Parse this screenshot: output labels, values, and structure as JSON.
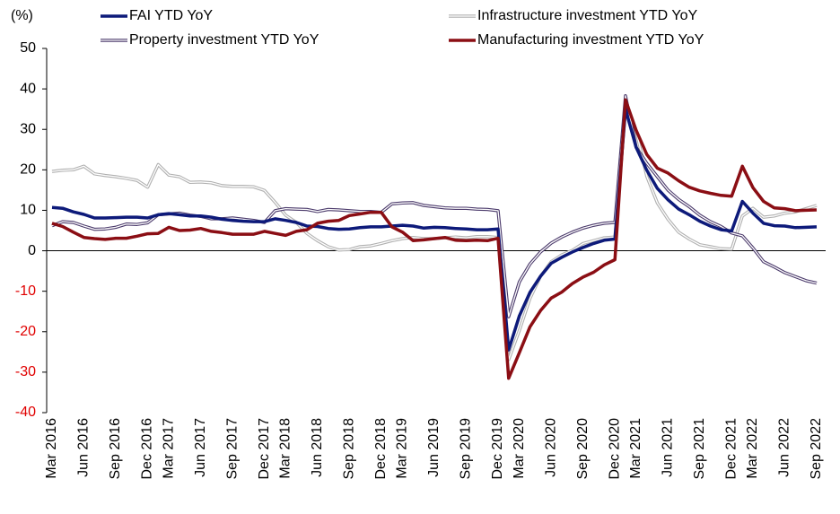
{
  "chart_data": {
    "type": "line",
    "y_label": "(%)",
    "categories": [
      "Mar 2016",
      null,
      null,
      "Jun 2016",
      null,
      null,
      "Sep 2016",
      null,
      null,
      "Dec 2016",
      null,
      "Mar 2017",
      null,
      null,
      "Jun 2017",
      null,
      null,
      "Sep 2017",
      null,
      null,
      "Dec 2017",
      null,
      "Mar 2018",
      null,
      null,
      "Jun 2018",
      null,
      null,
      "Sep 2018",
      null,
      null,
      "Dec 2018",
      null,
      "Mar 2019",
      null,
      null,
      "Jun 2019",
      null,
      null,
      "Sep 2019",
      null,
      null,
      "Dec 2019",
      null,
      "Mar 2020",
      null,
      null,
      "Jun 2020",
      null,
      null,
      "Sep 2020",
      null,
      null,
      "Dec 2020",
      null,
      "Mar 2021",
      null,
      null,
      "Jun 2021",
      null,
      null,
      "Sep 2021",
      null,
      null,
      "Dec 2021",
      null,
      "Mar 2022",
      null,
      null,
      "Jun 2022",
      null,
      null,
      "Sep 2022"
    ],
    "series": [
      {
        "name": "FAI YTD YoY",
        "color": "#0d1a7a",
        "outline": false,
        "values": [
          10.7,
          10.5,
          9.6,
          9.0,
          8.1,
          8.1,
          8.2,
          8.3,
          8.3,
          8.1,
          8.9,
          9.2,
          8.9,
          8.6,
          8.6,
          8.3,
          7.8,
          7.5,
          7.3,
          7.2,
          7.2,
          7.9,
          7.5,
          7.0,
          6.1,
          6.0,
          5.5,
          5.3,
          5.4,
          5.7,
          5.9,
          5.9,
          6.1,
          6.3,
          6.1,
          5.6,
          5.8,
          5.7,
          5.5,
          5.4,
          5.2,
          5.2,
          5.4,
          -24.5,
          -16.1,
          -10.3,
          -6.3,
          -3.1,
          -1.6,
          -0.3,
          0.8,
          1.8,
          2.6,
          2.9,
          35.0,
          25.6,
          19.9,
          15.4,
          12.6,
          10.3,
          8.9,
          7.3,
          6.1,
          5.2,
          4.9,
          12.2,
          9.3,
          6.8,
          6.2,
          6.1,
          5.7,
          5.8,
          5.9
        ]
      },
      {
        "name": "Infrastructure investment YTD YoY",
        "color": "#b0b0b0",
        "outline": true,
        "values": [
          19.6,
          19.9,
          20.0,
          20.9,
          19.0,
          18.6,
          18.3,
          17.9,
          17.4,
          15.7,
          21.3,
          18.7,
          18.3,
          16.9,
          17.0,
          16.8,
          16.1,
          15.9,
          15.9,
          15.8,
          14.9,
          12.0,
          8.8,
          7.0,
          4.3,
          2.5,
          1.0,
          0.2,
          0.3,
          1.0,
          1.2,
          1.8,
          2.5,
          3.0,
          3.3,
          3.0,
          3.0,
          3.2,
          3.4,
          3.2,
          3.5,
          3.5,
          3.3,
          -26.9,
          -19.7,
          -11.8,
          -6.3,
          -2.7,
          -1.0,
          0.1,
          1.8,
          2.5,
          3.2,
          3.4,
          35.0,
          29.7,
          18.4,
          11.8,
          7.8,
          4.6,
          2.9,
          1.5,
          1.0,
          0.5,
          0.4,
          8.6,
          10.5,
          8.3,
          8.6,
          9.3,
          9.6,
          10.4,
          11.2
        ]
      },
      {
        "name": "Property investment YTD YoY",
        "color": "#4b3a6b",
        "outline": true,
        "values": [
          6.2,
          7.2,
          7.0,
          6.1,
          5.3,
          5.4,
          5.8,
          6.6,
          6.5,
          6.9,
          8.9,
          9.1,
          9.3,
          8.8,
          8.5,
          7.9,
          7.9,
          8.1,
          7.8,
          7.5,
          7.0,
          9.9,
          10.4,
          10.3,
          10.2,
          9.7,
          10.2,
          10.1,
          9.9,
          9.7,
          9.7,
          9.5,
          11.6,
          11.8,
          11.9,
          11.2,
          10.9,
          10.6,
          10.5,
          10.5,
          10.3,
          10.2,
          9.9,
          -16.3,
          -7.7,
          -3.3,
          -0.3,
          1.9,
          3.4,
          4.6,
          5.6,
          6.3,
          6.8,
          7.0,
          38.3,
          25.6,
          21.6,
          18.3,
          15.0,
          12.7,
          10.9,
          8.8,
          7.2,
          6.0,
          4.4,
          3.7,
          0.7,
          -2.7,
          -4.0,
          -5.4,
          -6.4,
          -7.4,
          -8.0
        ]
      },
      {
        "name": "Manufacturing investment YTD YoY",
        "color": "#8b0e14",
        "outline": false,
        "values": [
          6.8,
          6.0,
          4.6,
          3.3,
          3.0,
          2.8,
          3.1,
          3.1,
          3.6,
          4.2,
          4.3,
          5.8,
          5.0,
          5.1,
          5.5,
          4.8,
          4.5,
          4.1,
          4.1,
          4.1,
          4.8,
          4.3,
          3.8,
          4.8,
          5.2,
          6.8,
          7.3,
          7.5,
          8.7,
          9.1,
          9.5,
          9.5,
          5.9,
          4.6,
          2.5,
          2.7,
          3.0,
          3.3,
          2.6,
          2.5,
          2.6,
          2.5,
          3.1,
          -31.5,
          -25.2,
          -18.8,
          -14.8,
          -11.7,
          -10.2,
          -8.1,
          -6.5,
          -5.3,
          -3.5,
          -2.2,
          37.3,
          29.8,
          23.8,
          20.4,
          19.2,
          17.3,
          15.7,
          14.8,
          14.2,
          13.7,
          13.5,
          20.9,
          15.6,
          12.2,
          10.6,
          10.4,
          9.9,
          10.0,
          10.1
        ]
      }
    ],
    "ylim": [
      -40,
      50
    ],
    "yticks": [
      -40,
      -30,
      -20,
      -10,
      0,
      10,
      20,
      30,
      40,
      50
    ],
    "tick_color": "#000000",
    "negative_tick_color": "#e00000",
    "grid": false,
    "legend": "top"
  }
}
